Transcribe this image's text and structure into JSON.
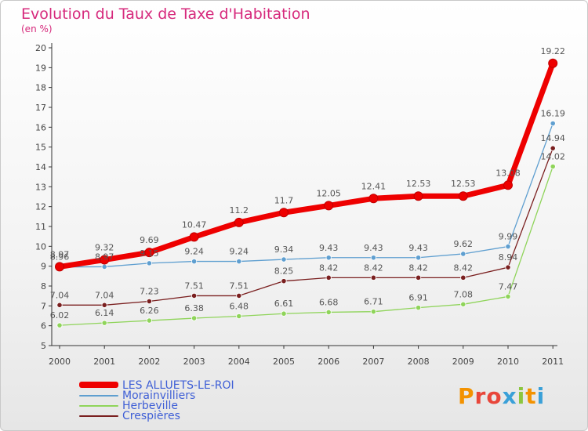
{
  "title": "Evolution du Taux de Taxe d'Habitation",
  "unit": "(en %)",
  "logo": {
    "text": "Proxiti",
    "colors": [
      "#f39200",
      "#e8463a",
      "#e8463a",
      "#3aa0d8",
      "#8cc63f",
      "#f39200",
      "#3aa0d8"
    ]
  },
  "chart_data": {
    "type": "line",
    "title": "Evolution du Taux de Taxe d'Habitation",
    "ylabel": "(en %)",
    "xlabel": "",
    "x": [
      "2000",
      "2001",
      "2002",
      "2003",
      "2004",
      "2005",
      "2006",
      "2007",
      "2008",
      "2009",
      "2010",
      "2011"
    ],
    "ylim": [
      5,
      20
    ],
    "yticks": [
      5,
      6,
      7,
      8,
      9,
      10,
      11,
      12,
      13,
      14,
      15,
      16,
      17,
      18,
      19,
      20
    ],
    "grid": false,
    "legend_position": "bottom-left",
    "series": [
      {
        "name": "LES ALLUETS-LE-ROI",
        "color": "#ee0000",
        "width": 7,
        "values": [
          8.97,
          9.32,
          9.69,
          10.47,
          11.2,
          11.7,
          12.05,
          12.41,
          12.53,
          12.53,
          13.08,
          19.22
        ],
        "labels": [
          "8.97",
          "9.32",
          "9.69",
          "10.47",
          "11.2",
          "11.7",
          "12.05",
          "12.41",
          "12.53",
          "12.53",
          "13.08",
          "19.22"
        ],
        "label_pos": "above"
      },
      {
        "name": "Morainvilliers",
        "color": "#5f9fd0",
        "width": 1.3,
        "values": [
          8.96,
          8.97,
          9.15,
          9.24,
          9.24,
          9.34,
          9.43,
          9.43,
          9.43,
          9.62,
          9.99,
          16.19
        ],
        "labels": [
          "8.96",
          "8.97",
          "9.15",
          "9.24",
          "9.24",
          "9.34",
          "9.43",
          "9.43",
          "9.43",
          "9.62",
          "9.99",
          "16.19"
        ],
        "label_pos": "above"
      },
      {
        "name": "Herbeville",
        "color": "#8fd45a",
        "width": 1.3,
        "values": [
          6.02,
          6.14,
          6.26,
          6.38,
          6.48,
          6.61,
          6.68,
          6.71,
          6.91,
          7.08,
          7.47,
          14.02
        ],
        "labels": [
          "6.02",
          "6.14",
          "6.26",
          "6.38",
          "6.48",
          "6.61",
          "6.68",
          "6.71",
          "6.91",
          "7.08",
          "7.47",
          "14.02"
        ],
        "label_pos": "above"
      },
      {
        "name": "Crespières",
        "color": "#7a1f1f",
        "width": 1.3,
        "values": [
          7.04,
          7.04,
          7.23,
          7.51,
          7.51,
          8.25,
          8.42,
          8.42,
          8.42,
          8.42,
          8.94,
          14.94
        ],
        "labels": [
          "7.04",
          "7.04",
          "7.23",
          "7.51",
          "7.51",
          "8.25",
          "8.42",
          "8.42",
          "8.42",
          "8.42",
          "8.94",
          "14.94"
        ],
        "label_pos": "above"
      }
    ]
  }
}
